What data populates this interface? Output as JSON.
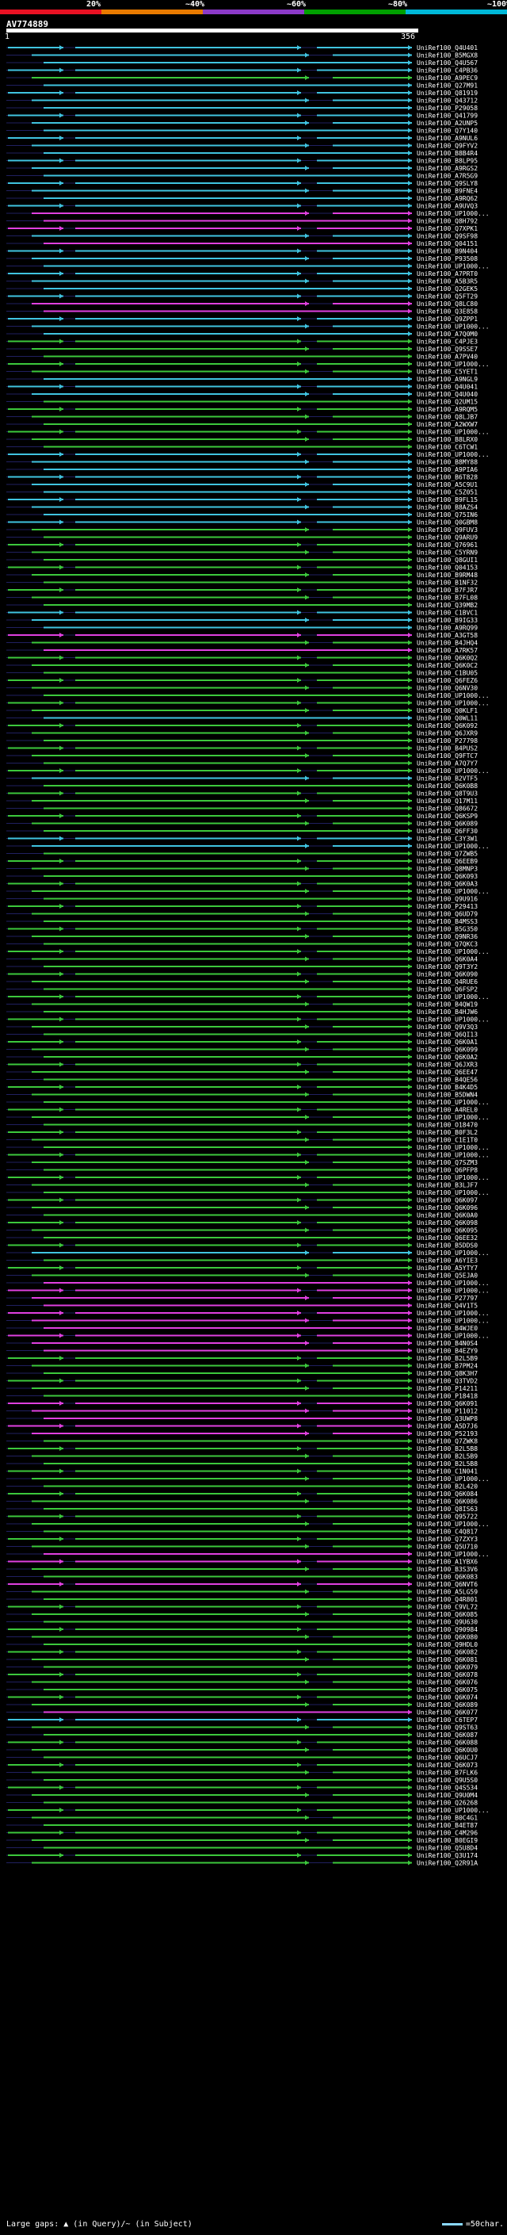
{
  "scale": {
    "labels": [
      "20%",
      "~40%",
      "~60%",
      "~80%",
      "~100%"
    ],
    "colors": [
      "#e81123",
      "#e87a00",
      "#8c3ac8",
      "#00a000",
      "#00b8d8"
    ]
  },
  "query": {
    "title": "AV774889",
    "start": "1",
    "end": "356"
  },
  "colors": {
    "blue": "#40c4e0",
    "green": "#3cc83c",
    "magenta": "#e040e0",
    "dark": "#202060"
  },
  "hits": [
    {
      "label": "UniRef100_Q4U401",
      "color": "blue"
    },
    {
      "label": "UniRef100_B5MGX8",
      "color": "blue"
    },
    {
      "label": "UniRef100_Q4U567",
      "color": "blue"
    },
    {
      "label": "UniRef100_C4PB36",
      "color": "blue"
    },
    {
      "label": "UniRef100_A9PEC9",
      "color": "green"
    },
    {
      "label": "UniRef100_Q27M91",
      "color": "blue"
    },
    {
      "label": "UniRef100_Q81919",
      "color": "blue"
    },
    {
      "label": "UniRef100_Q43712",
      "color": "blue"
    },
    {
      "label": "UniRef100_P29058",
      "color": "blue"
    },
    {
      "label": "UniRef100_Q41799",
      "color": "blue"
    },
    {
      "label": "UniRef100_A2UNP5",
      "color": "blue"
    },
    {
      "label": "UniRef100_Q7Y140",
      "color": "blue"
    },
    {
      "label": "UniRef100_A9NUL6",
      "color": "blue"
    },
    {
      "label": "UniRef100_Q9FYV2",
      "color": "blue"
    },
    {
      "label": "UniRef100_B8B4R4",
      "color": "blue"
    },
    {
      "label": "UniRef100_B8LP95",
      "color": "blue"
    },
    {
      "label": "UniRef100_A9RGS2",
      "color": "blue"
    },
    {
      "label": "UniRef100_A7R5G9",
      "color": "blue"
    },
    {
      "label": "UniRef100_Q9SLY8",
      "color": "blue"
    },
    {
      "label": "UniRef100_B9FNE4",
      "color": "blue"
    },
    {
      "label": "UniRef100_A9RQ62",
      "color": "blue"
    },
    {
      "label": "UniRef100_A9UVQ3",
      "color": "blue"
    },
    {
      "label": "UniRef100_UP1000...",
      "color": "magenta"
    },
    {
      "label": "UniRef100_Q8H792",
      "color": "magenta"
    },
    {
      "label": "UniRef100_Q7XPK1",
      "color": "magenta"
    },
    {
      "label": "UniRef100_Q9SF98",
      "color": "blue"
    },
    {
      "label": "UniRef100_Q04151",
      "color": "magenta"
    },
    {
      "label": "UniRef100_B9N404",
      "color": "blue"
    },
    {
      "label": "UniRef100_P93508",
      "color": "blue"
    },
    {
      "label": "UniRef100_UP1000...",
      "color": "blue"
    },
    {
      "label": "UniRef100_A7PRT0",
      "color": "blue"
    },
    {
      "label": "UniRef100_A5B3R5",
      "color": "blue"
    },
    {
      "label": "UniRef100_Q2GEK5",
      "color": "blue"
    },
    {
      "label": "UniRef100_Q5FT29",
      "color": "blue"
    },
    {
      "label": "UniRef100_Q8LC80",
      "color": "magenta"
    },
    {
      "label": "UniRef100_Q3E858",
      "color": "magenta"
    },
    {
      "label": "UniRef100_Q9ZPP1",
      "color": "blue"
    },
    {
      "label": "UniRef100_UP1000...",
      "color": "blue"
    },
    {
      "label": "UniRef100_A7Q0M0",
      "color": "blue"
    },
    {
      "label": "UniRef100_C4PJE3",
      "color": "green"
    },
    {
      "label": "UniRef100_Q9SSE7",
      "color": "green"
    },
    {
      "label": "UniRef100_A7PV40",
      "color": "green"
    },
    {
      "label": "UniRef100_UP1000...",
      "color": "green"
    },
    {
      "label": "UniRef100_C5YET1",
      "color": "green"
    },
    {
      "label": "UniRef100_A9NGL9",
      "color": "blue"
    },
    {
      "label": "UniRef100_Q4U041",
      "color": "blue"
    },
    {
      "label": "UniRef100_Q4U040",
      "color": "blue"
    },
    {
      "label": "UniRef100_Q2UM15",
      "color": "green"
    },
    {
      "label": "UniRef100_A9RQM5",
      "color": "green"
    },
    {
      "label": "UniRef100_Q8LJB7",
      "color": "green"
    },
    {
      "label": "UniRef100_A2WXW7",
      "color": "green"
    },
    {
      "label": "UniRef100_UP1000...",
      "color": "green"
    },
    {
      "label": "UniRef100_B8LRX0",
      "color": "green"
    },
    {
      "label": "UniRef100_C6TCW1",
      "color": "green"
    },
    {
      "label": "UniRef100_UP1000...",
      "color": "blue"
    },
    {
      "label": "UniRef100_B8MY88",
      "color": "blue"
    },
    {
      "label": "UniRef100_A9PIA6",
      "color": "blue"
    },
    {
      "label": "UniRef100_B6T828",
      "color": "blue"
    },
    {
      "label": "UniRef100_A5C9U1",
      "color": "blue"
    },
    {
      "label": "UniRef100_C5Z051",
      "color": "blue"
    },
    {
      "label": "UniRef100_B9FL15",
      "color": "blue"
    },
    {
      "label": "UniRef100_B8AZS4",
      "color": "blue"
    },
    {
      "label": "UniRef100_Q75IN6",
      "color": "blue"
    },
    {
      "label": "UniRef100_Q0GBM8",
      "color": "blue"
    },
    {
      "label": "UniRef100_Q9FUV3",
      "color": "green"
    },
    {
      "label": "UniRef100_Q9ARU9",
      "color": "green"
    },
    {
      "label": "UniRef100_Q76961",
      "color": "green"
    },
    {
      "label": "UniRef100_C5YRN9",
      "color": "green"
    },
    {
      "label": "UniRef100_Q8GUI1",
      "color": "green"
    },
    {
      "label": "UniRef100_Q04153",
      "color": "green"
    },
    {
      "label": "UniRef100_B9RM48",
      "color": "green"
    },
    {
      "label": "UniRef100_B1NF32",
      "color": "green"
    },
    {
      "label": "UniRef100_B7FJR7",
      "color": "green"
    },
    {
      "label": "UniRef100_B7FL08",
      "color": "green"
    },
    {
      "label": "UniRef100_Q39MB2",
      "color": "green"
    },
    {
      "label": "UniRef100_C1BVC1",
      "color": "blue"
    },
    {
      "label": "UniRef100_B9IG33",
      "color": "blue"
    },
    {
      "label": "UniRef100_A9RQ99",
      "color": "blue"
    },
    {
      "label": "UniRef100_A3GT58",
      "color": "magenta"
    },
    {
      "label": "UniRef100_B4JHQ4",
      "color": "green"
    },
    {
      "label": "UniRef100_A7RK57",
      "color": "magenta"
    },
    {
      "label": "UniRef100_Q6K0Q2",
      "color": "green"
    },
    {
      "label": "UniRef100_Q6K0C2",
      "color": "green"
    },
    {
      "label": "UniRef100_C1BU05",
      "color": "green"
    },
    {
      "label": "UniRef100_Q6FEZ6",
      "color": "green"
    },
    {
      "label": "UniRef100_Q6NV30",
      "color": "green"
    },
    {
      "label": "UniRef100_UP1000...",
      "color": "green"
    },
    {
      "label": "UniRef100_UP1000...",
      "color": "green"
    },
    {
      "label": "UniRef100_Q0KLF1",
      "color": "green"
    },
    {
      "label": "UniRef100_Q0WL11",
      "color": "blue"
    },
    {
      "label": "UniRef100_Q6K092",
      "color": "green"
    },
    {
      "label": "UniRef100_Q6JXR9",
      "color": "green"
    },
    {
      "label": "UniRef100_P27798",
      "color": "green"
    },
    {
      "label": "UniRef100_B4PUS2",
      "color": "green"
    },
    {
      "label": "UniRef100_Q9FTC7",
      "color": "green"
    },
    {
      "label": "UniRef100_A7Q7Y7",
      "color": "green"
    },
    {
      "label": "UniRef100_UP1000...",
      "color": "green"
    },
    {
      "label": "UniRef100_B2VTF5",
      "color": "blue"
    },
    {
      "label": "UniRef100_Q6K0B8",
      "color": "green"
    },
    {
      "label": "UniRef100_Q8T9U3",
      "color": "green"
    },
    {
      "label": "UniRef100_Q17M11",
      "color": "green"
    },
    {
      "label": "UniRef100_Q86672",
      "color": "green"
    },
    {
      "label": "UniRef100_Q6KSP9",
      "color": "green"
    },
    {
      "label": "UniRef100_Q6K089",
      "color": "green"
    },
    {
      "label": "UniRef100_Q6FF30",
      "color": "green"
    },
    {
      "label": "UniRef100_C3Y3W1",
      "color": "blue"
    },
    {
      "label": "UniRef100_UP1000...",
      "color": "blue"
    },
    {
      "label": "UniRef100_Q7ZWB5",
      "color": "green"
    },
    {
      "label": "UniRef100_Q6EEB9",
      "color": "green"
    },
    {
      "label": "UniRef100_Q8MNP3",
      "color": "green"
    },
    {
      "label": "UniRef100_Q6K093",
      "color": "green"
    },
    {
      "label": "UniRef100_Q6K0A3",
      "color": "green"
    },
    {
      "label": "UniRef100_UP1000...",
      "color": "green"
    },
    {
      "label": "UniRef100_Q9U916",
      "color": "green"
    },
    {
      "label": "UniRef100_P29413",
      "color": "green"
    },
    {
      "label": "UniRef100_Q6UD79",
      "color": "green"
    },
    {
      "label": "UniRef100_B4MSS3",
      "color": "green"
    },
    {
      "label": "UniRef100_B5G350",
      "color": "green"
    },
    {
      "label": "UniRef100_Q9NR36",
      "color": "green"
    },
    {
      "label": "UniRef100_Q7QKC3",
      "color": "green"
    },
    {
      "label": "UniRef100_UP1000...",
      "color": "green"
    },
    {
      "label": "UniRef100_Q6K0A4",
      "color": "green"
    },
    {
      "label": "UniRef100_Q9T3Y2",
      "color": "green"
    },
    {
      "label": "UniRef100_Q6K090",
      "color": "green"
    },
    {
      "label": "UniRef100_Q4RUE6",
      "color": "green"
    },
    {
      "label": "UniRef100_Q6FSP2",
      "color": "green"
    },
    {
      "label": "UniRef100_UP1000...",
      "color": "green"
    },
    {
      "label": "UniRef100_B4QW19",
      "color": "green"
    },
    {
      "label": "UniRef100_B4HJW6",
      "color": "green"
    },
    {
      "label": "UniRef100_UP1000...",
      "color": "green"
    },
    {
      "label": "UniRef100_Q9V3Q3",
      "color": "green"
    },
    {
      "label": "UniRef100_Q6QI13",
      "color": "green"
    },
    {
      "label": "UniRef100_Q6K0A1",
      "color": "green"
    },
    {
      "label": "UniRef100_Q6K099",
      "color": "green"
    },
    {
      "label": "UniRef100_Q6K0A2",
      "color": "green"
    },
    {
      "label": "UniRef100_Q6JXR3",
      "color": "green"
    },
    {
      "label": "UniRef100_Q6EE47",
      "color": "green"
    },
    {
      "label": "UniRef100_B4QE56",
      "color": "green"
    },
    {
      "label": "UniRef100_B4K4D5",
      "color": "green"
    },
    {
      "label": "UniRef100_B5DWN4",
      "color": "green"
    },
    {
      "label": "UniRef100_UP1000...",
      "color": "green"
    },
    {
      "label": "UniRef100_A4REL0",
      "color": "green"
    },
    {
      "label": "UniRef100_UP1000...",
      "color": "green"
    },
    {
      "label": "UniRef100_O18470",
      "color": "green"
    },
    {
      "label": "UniRef100_B0F3L2",
      "color": "green"
    },
    {
      "label": "UniRef100_C1E1T0",
      "color": "green"
    },
    {
      "label": "UniRef100_UP1000...",
      "color": "green"
    },
    {
      "label": "UniRef100_UP1000...",
      "color": "green"
    },
    {
      "label": "UniRef100_Q7SZM3",
      "color": "green"
    },
    {
      "label": "UniRef100_Q6PFP8",
      "color": "green"
    },
    {
      "label": "UniRef100_UP1000...",
      "color": "green"
    },
    {
      "label": "UniRef100_B3LJF7",
      "color": "green"
    },
    {
      "label": "UniRef100_UP1000...",
      "color": "green"
    },
    {
      "label": "UniRef100_Q6K097",
      "color": "green"
    },
    {
      "label": "UniRef100_Q6K096",
      "color": "green"
    },
    {
      "label": "UniRef100_Q6K0A0",
      "color": "green"
    },
    {
      "label": "UniRef100_Q6K098",
      "color": "green"
    },
    {
      "label": "UniRef100_Q6K095",
      "color": "green"
    },
    {
      "label": "UniRef100_Q6EE32",
      "color": "green"
    },
    {
      "label": "UniRef100_B5DDS0",
      "color": "green"
    },
    {
      "label": "UniRef100_UP1000...",
      "color": "blue"
    },
    {
      "label": "UniRef100_A6YIE3",
      "color": "green"
    },
    {
      "label": "UniRef100_A5YTY7",
      "color": "green"
    },
    {
      "label": "UniRef100_Q5EJA0",
      "color": "green"
    },
    {
      "label": "UniRef100_UP1000...",
      "color": "magenta"
    },
    {
      "label": "UniRef100_UP1000...",
      "color": "magenta"
    },
    {
      "label": "UniRef100_P27797",
      "color": "magenta"
    },
    {
      "label": "UniRef100_Q4V1T5",
      "color": "magenta"
    },
    {
      "label": "UniRef100_UP1000...",
      "color": "magenta"
    },
    {
      "label": "UniRef100_UP1000...",
      "color": "magenta"
    },
    {
      "label": "UniRef100_B4WJE0",
      "color": "magenta"
    },
    {
      "label": "UniRef100_UP1000...",
      "color": "magenta"
    },
    {
      "label": "UniRef100_B4N0S4",
      "color": "magenta"
    },
    {
      "label": "UniRef100_B4EZY9",
      "color": "magenta"
    },
    {
      "label": "UniRef100_B2L5B9",
      "color": "green"
    },
    {
      "label": "UniRef100_B7PM24",
      "color": "green"
    },
    {
      "label": "UniRef100_Q8K3H7",
      "color": "green"
    },
    {
      "label": "UniRef100_Q3TVD2",
      "color": "green"
    },
    {
      "label": "UniRef100_P14211",
      "color": "green"
    },
    {
      "label": "UniRef100_P18418",
      "color": "green"
    },
    {
      "label": "UniRef100_Q6K091",
      "color": "magenta"
    },
    {
      "label": "UniRef100_P11012",
      "color": "magenta"
    },
    {
      "label": "UniRef100_Q3UWP8",
      "color": "magenta"
    },
    {
      "label": "UniRef100_A5D7J6",
      "color": "magenta"
    },
    {
      "label": "UniRef100_P52193",
      "color": "magenta"
    },
    {
      "label": "UniRef100_Q7ZWK8",
      "color": "green"
    },
    {
      "label": "UniRef100_B2L5B8",
      "color": "green"
    },
    {
      "label": "UniRef100_B2L5B9",
      "color": "green"
    },
    {
      "label": "UniRef100_B2L5B8",
      "color": "green"
    },
    {
      "label": "UniRef100_C1N041",
      "color": "green"
    },
    {
      "label": "UniRef100_UP1000...",
      "color": "green"
    },
    {
      "label": "UniRef100_B2L420",
      "color": "green"
    },
    {
      "label": "UniRef100_Q6K084",
      "color": "green"
    },
    {
      "label": "UniRef100_Q6K086",
      "color": "green"
    },
    {
      "label": "UniRef100_Q8IS63",
      "color": "green"
    },
    {
      "label": "UniRef100_Q95722",
      "color": "green"
    },
    {
      "label": "UniRef100_UP1000...",
      "color": "green"
    },
    {
      "label": "UniRef100_C4Q817",
      "color": "green"
    },
    {
      "label": "UniRef100_Q7ZXY3",
      "color": "green"
    },
    {
      "label": "UniRef100_Q5U710",
      "color": "green"
    },
    {
      "label": "UniRef100_UP1000...",
      "color": "magenta"
    },
    {
      "label": "UniRef100_A1YBX6",
      "color": "magenta"
    },
    {
      "label": "UniRef100_B3S3V6",
      "color": "green"
    },
    {
      "label": "UniRef100_Q6K083",
      "color": "green"
    },
    {
      "label": "UniRef100_Q6NVT6",
      "color": "magenta"
    },
    {
      "label": "UniRef100_A5LG59",
      "color": "green"
    },
    {
      "label": "UniRef100_Q4R801",
      "color": "green"
    },
    {
      "label": "UniRef100_C9VL72",
      "color": "green"
    },
    {
      "label": "UniRef100_Q6K085",
      "color": "green"
    },
    {
      "label": "UniRef100_Q9U630",
      "color": "green"
    },
    {
      "label": "UniRef100_Q90984",
      "color": "green"
    },
    {
      "label": "UniRef100_Q6K080",
      "color": "green"
    },
    {
      "label": "UniRef100_Q9HDL0",
      "color": "green"
    },
    {
      "label": "UniRef100_Q6K082",
      "color": "green"
    },
    {
      "label": "UniRef100_Q6K081",
      "color": "green"
    },
    {
      "label": "UniRef100_Q6K079",
      "color": "green"
    },
    {
      "label": "UniRef100_Q6K078",
      "color": "green"
    },
    {
      "label": "UniRef100_Q6K076",
      "color": "green"
    },
    {
      "label": "UniRef100_Q6K075",
      "color": "green"
    },
    {
      "label": "UniRef100_Q6K074",
      "color": "green"
    },
    {
      "label": "UniRef100_Q6K089",
      "color": "green"
    },
    {
      "label": "UniRef100_Q6K077",
      "color": "magenta"
    },
    {
      "label": "UniRef100_C6TEP7",
      "color": "blue"
    },
    {
      "label": "UniRef100_Q9ST63",
      "color": "green"
    },
    {
      "label": "UniRef100_Q6K087",
      "color": "green"
    },
    {
      "label": "UniRef100_Q6K088",
      "color": "green"
    },
    {
      "label": "UniRef100_Q6K0U0",
      "color": "green"
    },
    {
      "label": "UniRef100_Q6UCJ7",
      "color": "green"
    },
    {
      "label": "UniRef100_Q6K073",
      "color": "green"
    },
    {
      "label": "UniRef100_B7FLK6",
      "color": "green"
    },
    {
      "label": "UniRef100_Q9U5S0",
      "color": "green"
    },
    {
      "label": "UniRef100_Q4S534",
      "color": "green"
    },
    {
      "label": "UniRef100_Q9U0M4",
      "color": "green"
    },
    {
      "label": "UniRef100_Q26268",
      "color": "green"
    },
    {
      "label": "UniRef100_UP1000...",
      "color": "green"
    },
    {
      "label": "UniRef100_B0C4G1",
      "color": "green"
    },
    {
      "label": "UniRef100_B4ET87",
      "color": "green"
    },
    {
      "label": "UniRef100_C4M296",
      "color": "green"
    },
    {
      "label": "UniRef100_B0EGI9",
      "color": "green"
    },
    {
      "label": "UniRef100_Q5U8D4",
      "color": "green"
    },
    {
      "label": "UniRef100_Q3U174",
      "color": "green"
    },
    {
      "label": "UniRef100_Q2R91A",
      "color": "green"
    }
  ],
  "footer": {
    "legend_left": "Large gaps: ▲ (in Query)/~ (in Subject)",
    "legend_right": "=50char."
  }
}
